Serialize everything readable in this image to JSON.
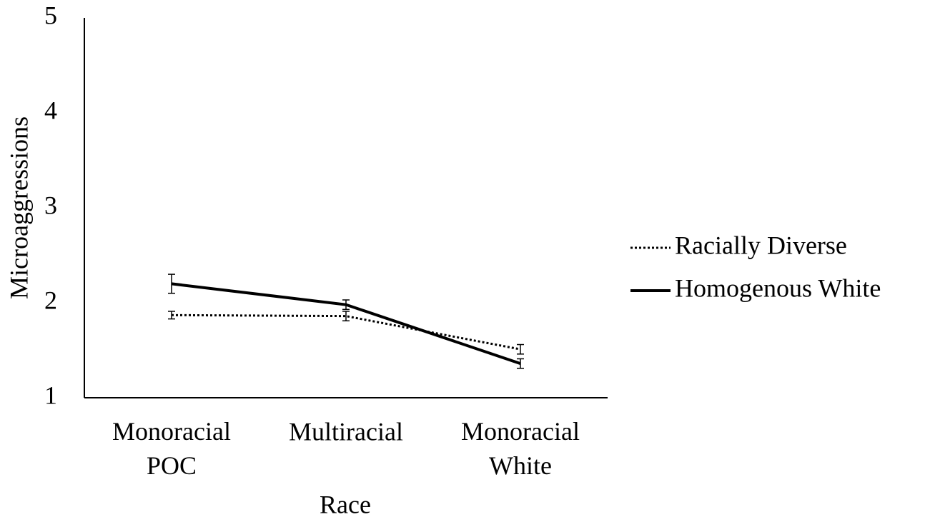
{
  "chart_data": {
    "type": "line",
    "x_label": "Race",
    "y_label": "Microaggressions",
    "categories": [
      "Monoracial POC",
      "Multiracial",
      "Monoracial White"
    ],
    "series": [
      {
        "name": "Racially Diverse",
        "color": "#000000",
        "style": "dotted",
        "values": [
          1.87,
          1.86,
          1.51
        ],
        "errors": [
          0.04,
          0.05,
          0.05
        ]
      },
      {
        "name": "Homogenous White",
        "color": "#000000",
        "style": "solid",
        "values": [
          2.2,
          1.98,
          1.36
        ],
        "errors": [
          0.1,
          0.05,
          0.05
        ]
      }
    ],
    "ylim": [
      1,
      5
    ],
    "yticks": [
      1,
      2,
      3,
      4,
      5
    ],
    "grid": false,
    "legend": "right"
  }
}
